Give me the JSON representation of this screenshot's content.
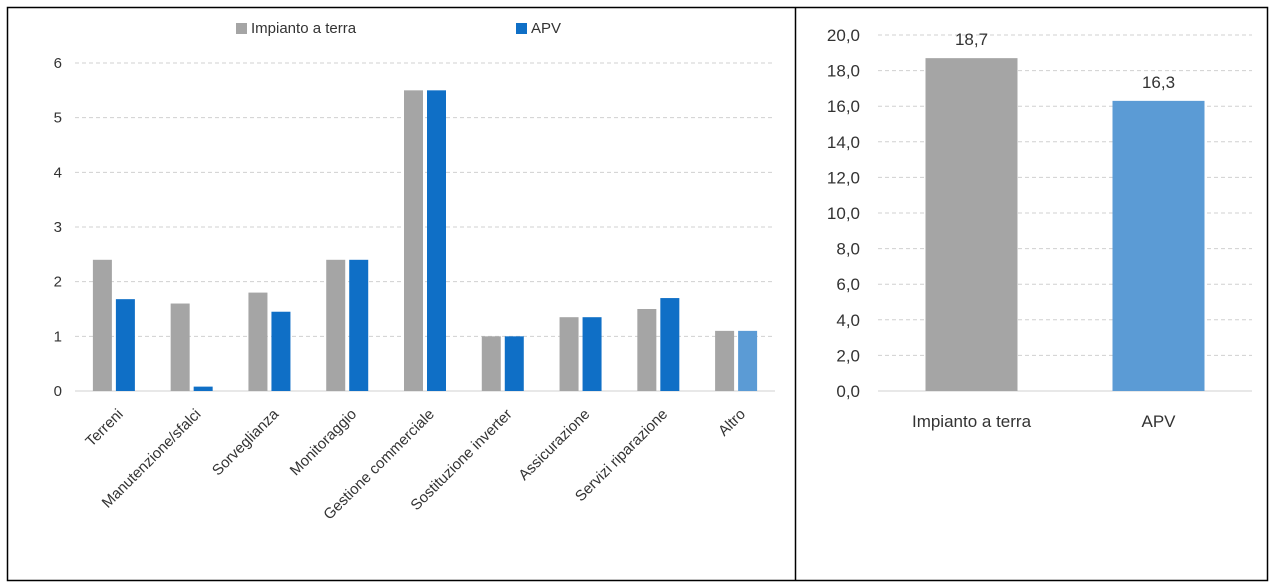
{
  "colors": {
    "ground": "#a5a5a5",
    "apv": "#0f6fc6",
    "apv_light": "#5b9bd5",
    "grid": "#d0d0d0",
    "text": "#333333",
    "border": "#000000"
  },
  "chart_data": [
    {
      "type": "bar",
      "categories": [
        "Terreni",
        "Manutenzione/sfalci",
        "Sorveglianza",
        "Monitoraggio",
        "Gestione commerciale",
        "Sostituzione inverter",
        "Assicurazione",
        "Servizi riparazione",
        "Altro"
      ],
      "series": [
        {
          "name": "Impianto a terra",
          "values": [
            2.4,
            1.6,
            1.8,
            2.4,
            5.5,
            1.0,
            1.35,
            1.5,
            1.1
          ]
        },
        {
          "name": "APV",
          "values": [
            1.68,
            0.08,
            1.45,
            2.4,
            5.5,
            1.0,
            1.35,
            1.7,
            1.1
          ]
        }
      ],
      "ylim": [
        0,
        6
      ],
      "yticks": [
        "0",
        "1",
        "2",
        "3",
        "4",
        "5",
        "6"
      ],
      "grid": true,
      "legend": "top"
    },
    {
      "type": "bar",
      "categories": [
        "Impianto a terra",
        "APV"
      ],
      "values": [
        18.7,
        16.3
      ],
      "data_labels": [
        "18,7",
        "16,3"
      ],
      "ylim": [
        0,
        20
      ],
      "yticks": [
        "0,0",
        "2,0",
        "4,0",
        "6,0",
        "8,0",
        "10,0",
        "12,0",
        "14,0",
        "16,0",
        "18,0",
        "20,0"
      ],
      "grid": true
    }
  ]
}
